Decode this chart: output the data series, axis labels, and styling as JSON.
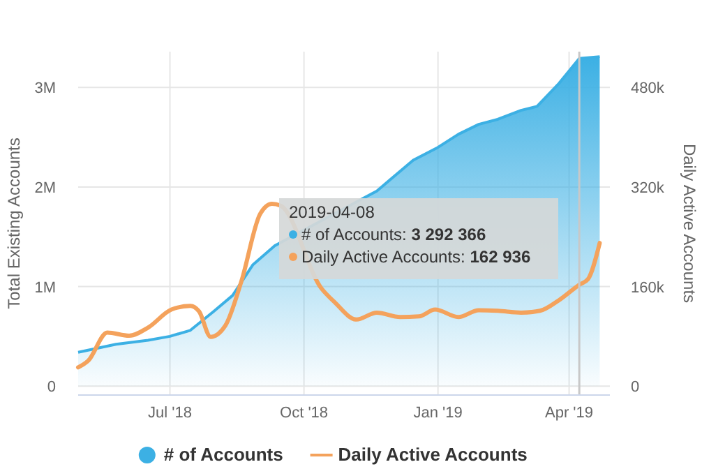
{
  "chart_data": {
    "type": "area",
    "ylabel": "Total Existing Accounts",
    "y2label": "Daily Active Accounts",
    "xlim": [
      "2018-04-29",
      "2019-04-29"
    ],
    "xticks": [
      {
        "value": "2018-07-01",
        "label": "Jul '18"
      },
      {
        "value": "2018-10-01",
        "label": "Oct '18"
      },
      {
        "value": "2019-01-01",
        "label": "Jan '19"
      },
      {
        "value": "2019-04-01",
        "label": "Apr '19"
      }
    ],
    "ylim": [
      -90000,
      3360000
    ],
    "yticks": [
      0,
      {
        "value": 1000000,
        "label": "1M"
      },
      {
        "value": 2000000,
        "label": "2M"
      },
      {
        "value": 3000000,
        "label": "3M"
      }
    ],
    "y2lim": [
      -14400,
      537600
    ],
    "y2ticks": [
      0,
      {
        "value": 160000,
        "label": "160k"
      },
      {
        "value": 320000,
        "label": "320k"
      },
      {
        "value": 480000,
        "label": "480k"
      }
    ],
    "grid": true,
    "legend": "bottom",
    "ref_lines": [
      {
        "axis": "x",
        "value": "2019-04-08",
        "color": "#c8c8c8"
      }
    ],
    "annotations": [
      "2019-04-08",
      "# of Accounts: 3 292 366",
      "Daily Active Accounts: 162 936"
    ],
    "series": [
      {
        "name": "# of Accounts",
        "color": "#3cb0e4",
        "x": [
          "2018-04-29",
          "2018-05-25",
          "2018-06-16",
          "2018-07-01",
          "2018-07-15",
          "2018-07-31",
          "2018-08-13",
          "2018-08-27",
          "2018-09-11",
          "2018-11-20",
          "2018-12-15",
          "2018-12-31",
          "2019-01-15",
          "2019-01-29",
          "2019-02-11",
          "2019-02-27",
          "2019-03-10",
          "2019-03-25",
          "2019-04-08",
          "2019-04-22"
        ],
        "values": [
          340000,
          420000,
          460000,
          500000,
          560000,
          750000,
          910000,
          1220000,
          1410000,
          1960000,
          2270000,
          2390000,
          2530000,
          2630000,
          2680000,
          2770000,
          2810000,
          3040000,
          3292366,
          3310000
        ]
      },
      {
        "name": "Daily Active Accounts",
        "type": "line",
        "axis": "y2",
        "color": "#f4a25c",
        "x": [
          "2018-04-29",
          "2018-05-06",
          "2018-05-19",
          "2018-06-03",
          "2018-06-16",
          "2018-07-02",
          "2018-07-15",
          "2018-07-21",
          "2018-07-29",
          "2018-08-08",
          "2018-08-19",
          "2018-09-01",
          "2018-09-09",
          "2018-09-15",
          "2018-10-13",
          "2018-10-22",
          "2018-11-06",
          "2018-11-20",
          "2018-12-06",
          "2018-12-19",
          "2018-12-30",
          "2019-01-15",
          "2019-01-29",
          "2019-02-11",
          "2019-02-27",
          "2019-03-12",
          "2019-03-25",
          "2019-04-08",
          "2019-04-14",
          "2019-04-22"
        ],
        "values": [
          30000,
          41000,
          86000,
          81000,
          94000,
          123000,
          129000,
          120000,
          79000,
          97000,
          168000,
          277000,
          293000,
          290000,
          157000,
          135000,
          107000,
          118000,
          111000,
          112000,
          123000,
          111000,
          122000,
          121000,
          118000,
          121000,
          138000,
          162936,
          172000,
          230000
        ]
      }
    ]
  }
}
